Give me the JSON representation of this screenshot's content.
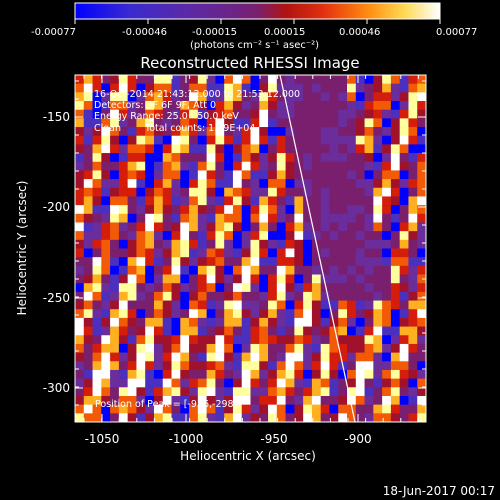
{
  "colorbar": {
    "ticks": [
      "-0.00077",
      "-0.00046",
      "-0.00015",
      "0.00015",
      "0.00046",
      "0.00077"
    ],
    "units_label": "(photons cm⁻² s⁻¹ asec⁻²)",
    "colors": [
      "#0000ff",
      "#4b2fbf",
      "#6b2c9c",
      "#7a1f6e",
      "#a0122c",
      "#d41d0a",
      "#f25a05",
      "#ffb020",
      "#ffff9e",
      "#ffffff"
    ]
  },
  "title": "Reconstructed RHESSI Image",
  "info": {
    "time": "16-Oct-2014 21:43:12.000 to 21:53:12.000",
    "detectors": "Detectors: 3F 6F 9F, Att 0",
    "energy": "Energy Range: 25.0 - 50.0 keV",
    "clean": "Clean",
    "counts": "Total counts: 1.09E+04",
    "peak": "Position of Peak = [-936,-298]"
  },
  "axes": {
    "x_label": "Heliocentric X (arcsec)",
    "y_label": "Heliocentric Y (arcsec)",
    "x_ticks": [
      "-1050",
      "-1000",
      "-950",
      "-900"
    ],
    "y_ticks": [
      "-150",
      "-200",
      "-250",
      "-300"
    ]
  },
  "footer": {
    "timestamp": "18-Jun-2017 00:17"
  }
}
